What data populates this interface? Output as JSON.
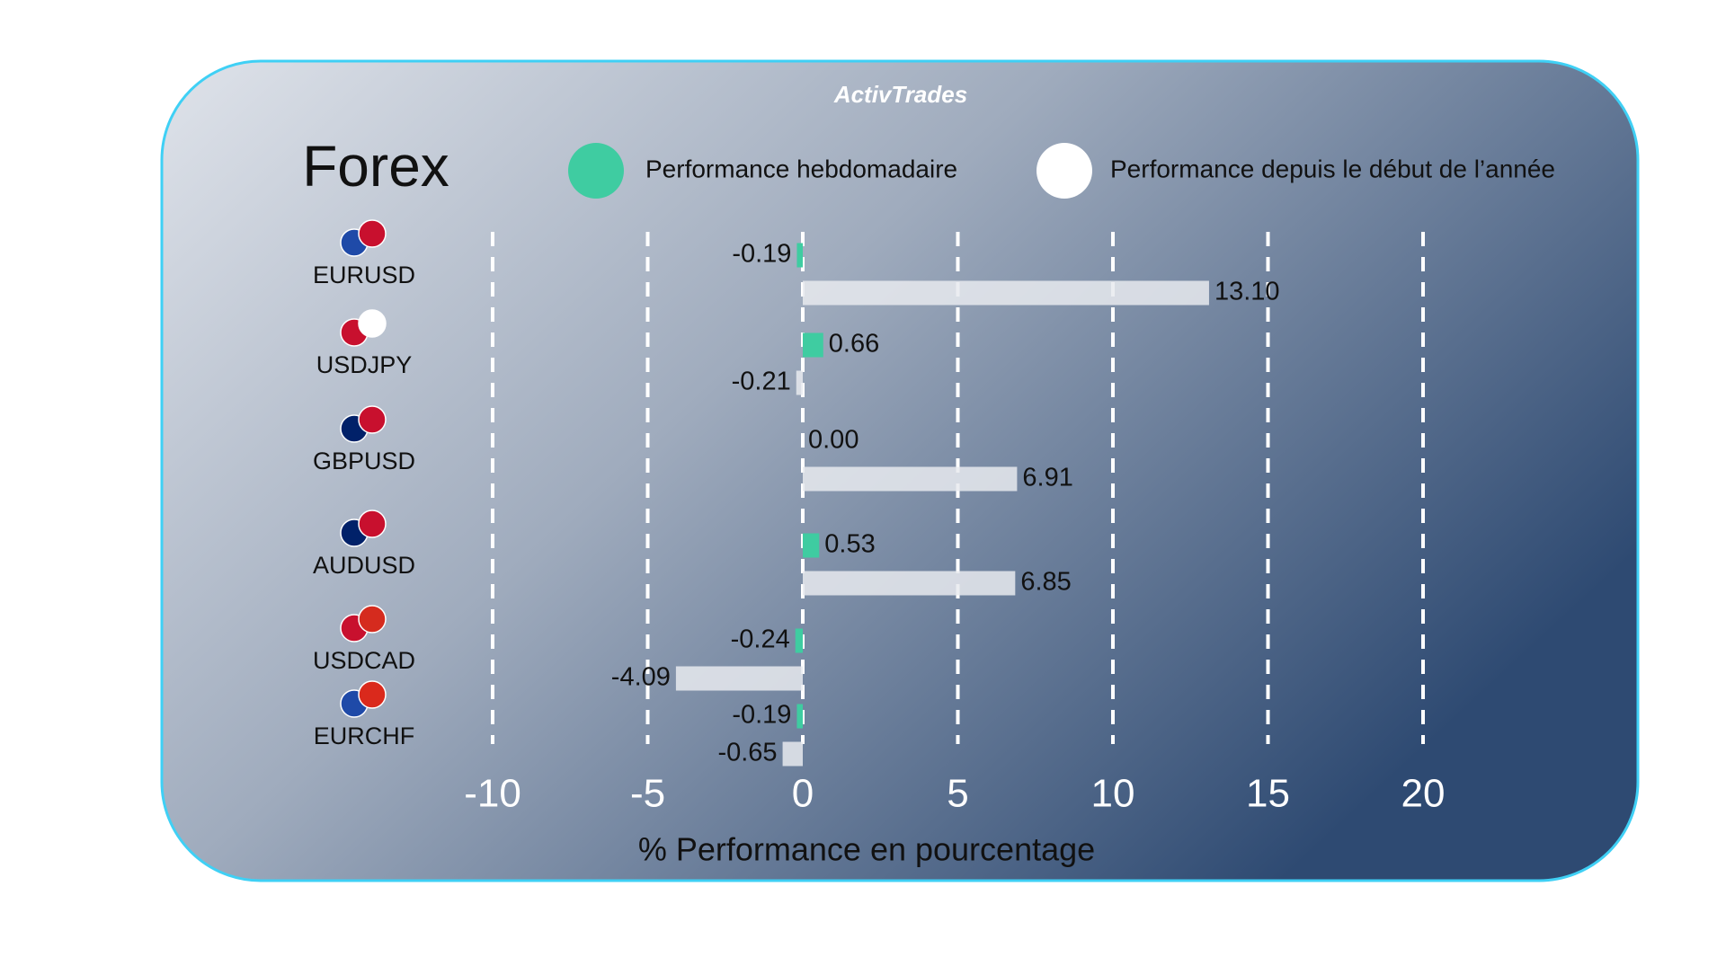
{
  "brand": "ActivTrades",
  "chart_data": {
    "type": "bar",
    "orientation": "horizontal",
    "title": "Forex",
    "x_label": "% Performance en pourcentage",
    "categories": [
      "EURUSD",
      "USDJPY",
      "GBPUSD",
      "AUDUSD",
      "USDCAD",
      "EURCHF"
    ],
    "series": [
      {
        "name": "Performance hebdomadaire",
        "color": "#3fcca1",
        "values": [
          -0.19,
          0.66,
          0.0,
          0.53,
          -0.24,
          -0.19
        ],
        "value_labels": [
          "-0.19",
          "0.66",
          "0.00",
          "0.53",
          "-0.24",
          "-0.19"
        ]
      },
      {
        "name": "Performance depuis le début de l’année",
        "color": "#e8eaef",
        "values": [
          13.1,
          -0.21,
          6.91,
          6.85,
          -4.09,
          -0.65
        ],
        "value_labels": [
          "13.10",
          "-0.21",
          "6.91",
          "6.85",
          "-4.09",
          "-0.65"
        ]
      }
    ],
    "xlim": [
      -10,
      20
    ],
    "xticks": [
      -10,
      -5,
      0,
      5,
      10,
      15,
      20
    ],
    "grid": true
  }
}
